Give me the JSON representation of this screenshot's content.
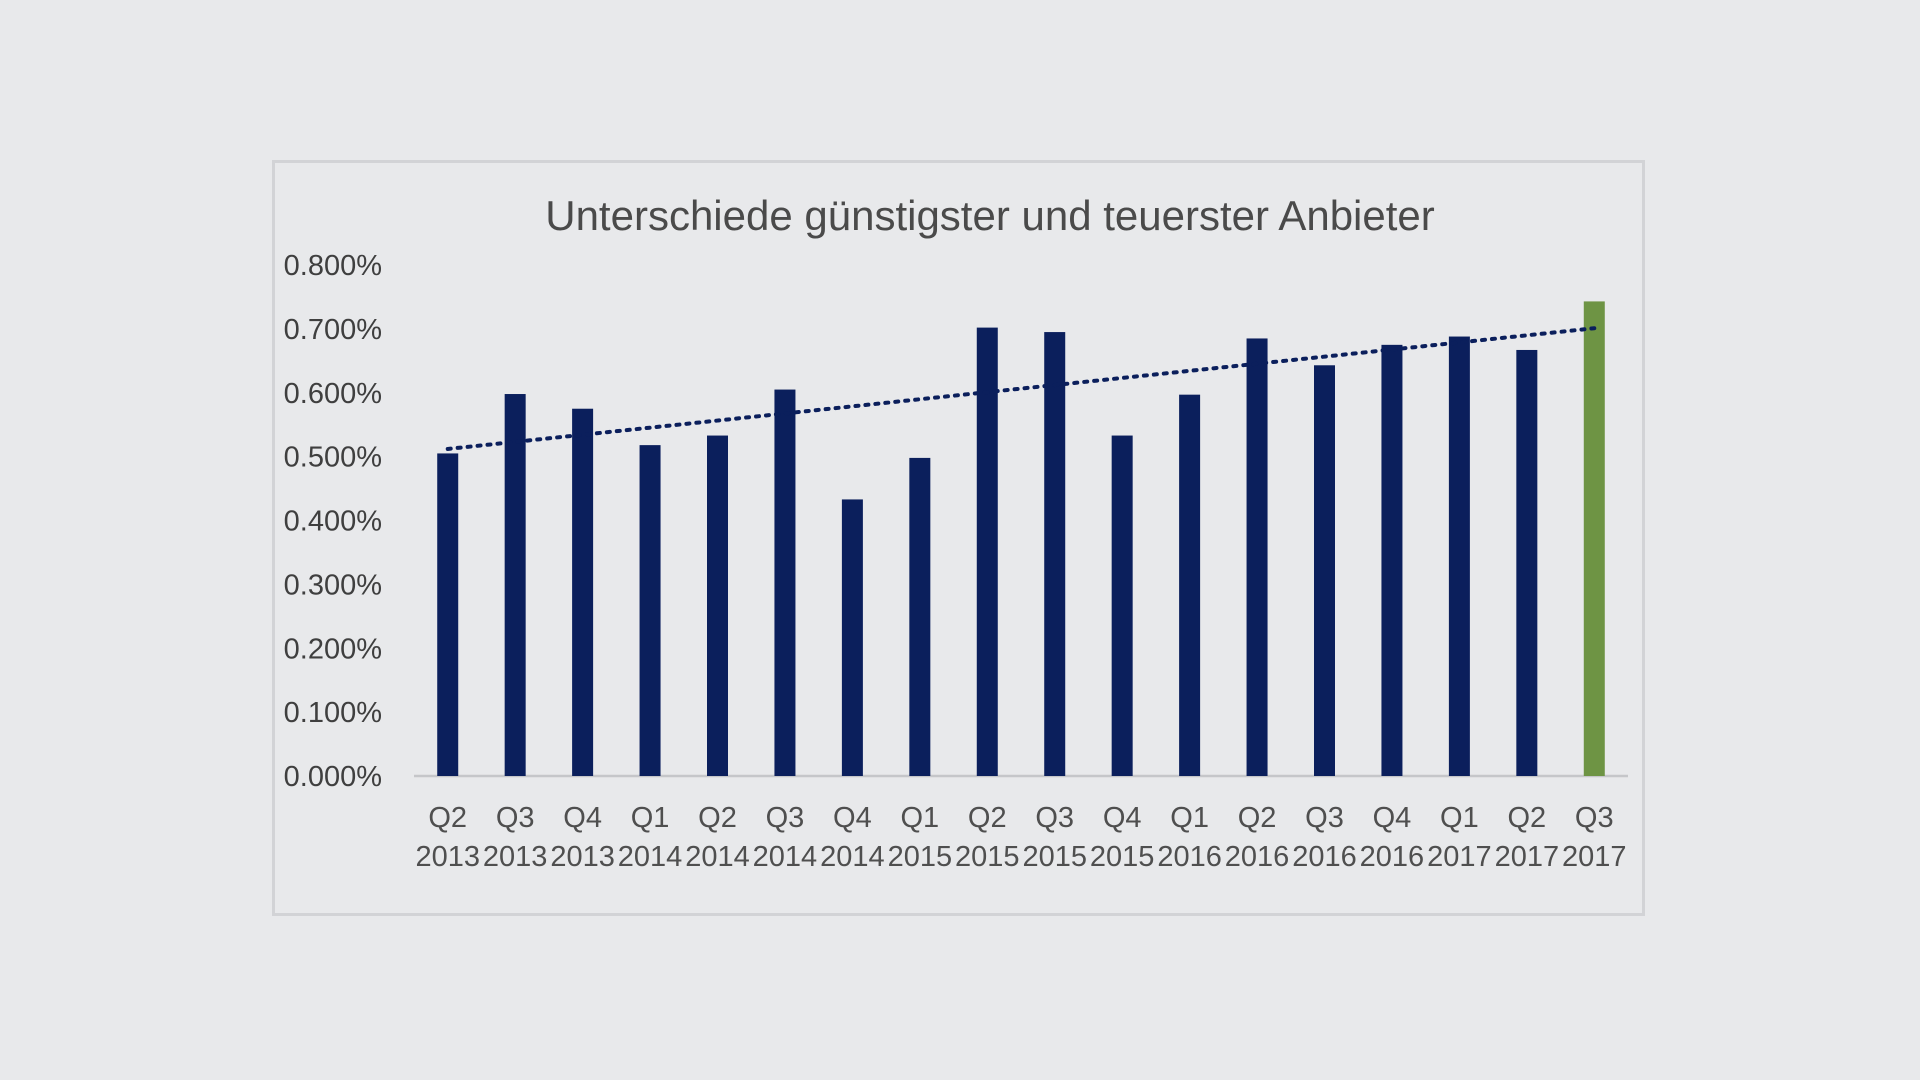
{
  "chart_data": {
    "type": "bar",
    "title": "Unterschiede günstigster und teuerster Anbieter",
    "xlabel": "",
    "ylabel": "",
    "ylim": [
      0,
      0.8
    ],
    "y_ticks": [
      "0.000%",
      "0.100%",
      "0.200%",
      "0.300%",
      "0.400%",
      "0.500%",
      "0.600%",
      "0.700%",
      "0.800%"
    ],
    "categories": [
      [
        "Q2",
        "2013"
      ],
      [
        "Q3",
        "2013"
      ],
      [
        "Q4",
        "2013"
      ],
      [
        "Q1",
        "2014"
      ],
      [
        "Q2",
        "2014"
      ],
      [
        "Q3",
        "2014"
      ],
      [
        "Q4",
        "2014"
      ],
      [
        "Q1",
        "2015"
      ],
      [
        "Q2",
        "2015"
      ],
      [
        "Q3",
        "2015"
      ],
      [
        "Q4",
        "2015"
      ],
      [
        "Q1",
        "2016"
      ],
      [
        "Q2",
        "2016"
      ],
      [
        "Q3",
        "2016"
      ],
      [
        "Q4",
        "2016"
      ],
      [
        "Q1",
        "2017"
      ],
      [
        "Q2",
        "2017"
      ],
      [
        "Q3",
        "2017"
      ]
    ],
    "values": [
      0.505,
      0.598,
      0.575,
      0.518,
      0.533,
      0.605,
      0.433,
      0.498,
      0.702,
      0.695,
      0.533,
      0.597,
      0.685,
      0.643,
      0.675,
      0.688,
      0.667,
      0.743
    ],
    "trendline": {
      "style": "dotted",
      "start": 0.512,
      "end": 0.701
    },
    "grid": false,
    "legend": "none",
    "colors": {
      "bar": "#0b1f5c",
      "highlight": "#6e9444",
      "trend": "#0b1f5c",
      "axis": "#c5c6c9"
    },
    "highlight_index": 17
  }
}
